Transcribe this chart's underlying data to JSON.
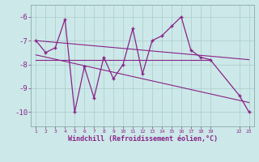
{
  "xlabel": "Windchill (Refroidissement éolien,°C)",
  "background_color": "#cce8e8",
  "line_color": "#882288",
  "grid_color": "#aacccc",
  "x_data": [
    1,
    2,
    3,
    4,
    5,
    6,
    7,
    8,
    9,
    10,
    11,
    12,
    13,
    14,
    15,
    16,
    17,
    18,
    19,
    22,
    23
  ],
  "y_data": [
    -7.0,
    -7.5,
    -7.3,
    -6.1,
    -10.0,
    -8.1,
    -9.4,
    -7.7,
    -8.6,
    -8.0,
    -6.5,
    -8.4,
    -7.0,
    -6.8,
    -6.4,
    -6.0,
    -7.4,
    -7.7,
    -7.8,
    -9.3,
    -10.0
  ],
  "reg_line1_x": [
    1,
    23
  ],
  "reg_line1_y": [
    -7.0,
    -7.8
  ],
  "reg_line2_x": [
    1,
    23
  ],
  "reg_line2_y": [
    -7.6,
    -9.6
  ],
  "reg_line3_x": [
    1,
    19
  ],
  "reg_line3_y": [
    -7.8,
    -7.8
  ],
  "ylim": [
    -10.6,
    -5.5
  ],
  "xlim": [
    0.5,
    23.5
  ],
  "yticks": [
    -10,
    -9,
    -8,
    -7,
    -6
  ],
  "xticks": [
    1,
    2,
    3,
    4,
    5,
    6,
    7,
    8,
    9,
    10,
    11,
    12,
    13,
    14,
    15,
    16,
    17,
    18,
    19,
    22,
    23
  ]
}
